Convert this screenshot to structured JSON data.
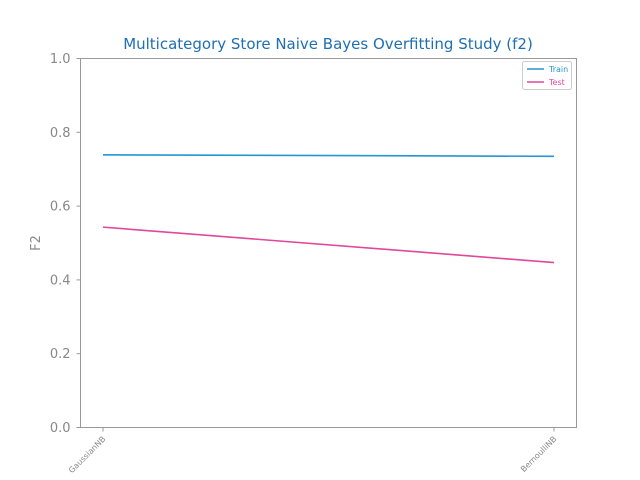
{
  "chart_data": {
    "type": "line",
    "title": "Multicategory Store Naive Bayes Overfitting Study (f2)",
    "xlabel": "",
    "ylabel": "F2",
    "categories": [
      "GaussianNB",
      "BernoulliNB"
    ],
    "ylim": [
      0,
      1
    ],
    "yticks": [
      "0.0",
      "0.2",
      "0.4",
      "0.6",
      "0.8",
      "1.0"
    ],
    "grid": false,
    "legend_position": "top-right",
    "series": [
      {
        "name": "Train",
        "values": [
          0.739,
          0.735
        ],
        "color": "#2596d1"
      },
      {
        "name": "Test",
        "values": [
          0.543,
          0.447
        ],
        "color": "#e0489c"
      }
    ],
    "colors": {
      "title": "#1f6fb2",
      "axis": "#999999",
      "text": "#888888"
    }
  }
}
